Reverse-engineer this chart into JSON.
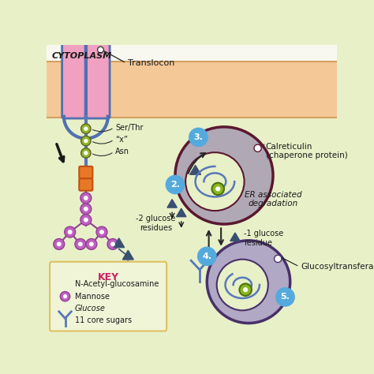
{
  "bg_color": "#e8f0c8",
  "er_membrane_color": "#f5c898",
  "er_border_color": "#d4a060",
  "membrane_pink": "#f0a0c0",
  "membrane_blue": "#5070b0",
  "chain_color": "#5878b8",
  "nag_color": "#e87828",
  "nag_edge_color": "#c05010",
  "mannose_color": "#c060c0",
  "mannose_edge": "#904090",
  "glucose_fill": "#3a5070",
  "glucose_edge": "#3a5070",
  "calreticulin_fill": "#b0a8b5",
  "calreticulin_border": "#5a1830",
  "glucosyl_fill": "#b0a8c5",
  "glucosyl_border": "#483068",
  "step_circle_color": "#55aadd",
  "arrow_color": "#282828",
  "key_border": "#e0c060",
  "key_bg": "#f0f5d8",
  "key_title_color": "#cc2060",
  "green_sugar_color": "#88b820",
  "green_sugar_edge": "#507010",
  "label_color": "#1a1a1a",
  "title_cytoplasm": "CYTOPLASM",
  "label_translocon": "Translocon",
  "label_ser_thr": "Ser/Thr",
  "label_x": "“x”",
  "label_asn": "Asn",
  "label_2glucose": "-2 glucose\nresidues",
  "label_1glucose": "-1 glucose\nresidue",
  "label_calreticulin": "Calreticulin\n(chaperone protein)",
  "label_er_assoc": "ER associated\ndegradation",
  "label_glucosyl": "Glucosyltransferase",
  "key_title": "KEY",
  "key_nag": "N-Acetyl-glucosamine",
  "key_mannose": "Mannose",
  "key_glucose": "Glucose",
  "key_sugars": "11 core sugars"
}
